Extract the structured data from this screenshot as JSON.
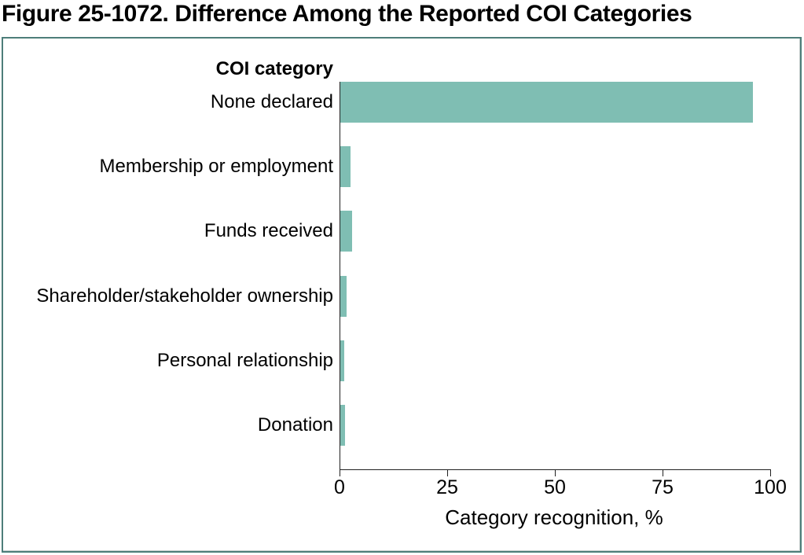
{
  "title": "Figure 25-1072. Difference Among the Reported COI Categories",
  "panel": {
    "y_axis_header": "COI category",
    "x_axis_label": "Category recognition, %"
  },
  "chart_data": {
    "type": "bar",
    "orientation": "horizontal",
    "title": "Figure 25-1072. Difference Among the Reported COI Categories",
    "ylabel": "COI category",
    "xlabel": "Category recognition, %",
    "categories": [
      "None declared",
      "Membership or employment",
      "Funds received",
      "Shareholder/stakeholder ownership",
      "Personal relationship",
      "Donation"
    ],
    "values": [
      96,
      2.4,
      2.8,
      1.4,
      0.9,
      1.1
    ],
    "xlim": [
      0,
      100
    ],
    "xticks": [
      0,
      25,
      50,
      75,
      100
    ],
    "grid": "off",
    "legend": "none",
    "bar_color": "#7FBEB3"
  },
  "colors": {
    "bar": "#7FBEB3",
    "panel_border": "#4D7E7A",
    "axis": "#222222",
    "text": "#000000",
    "background": "#FFFFFF"
  }
}
